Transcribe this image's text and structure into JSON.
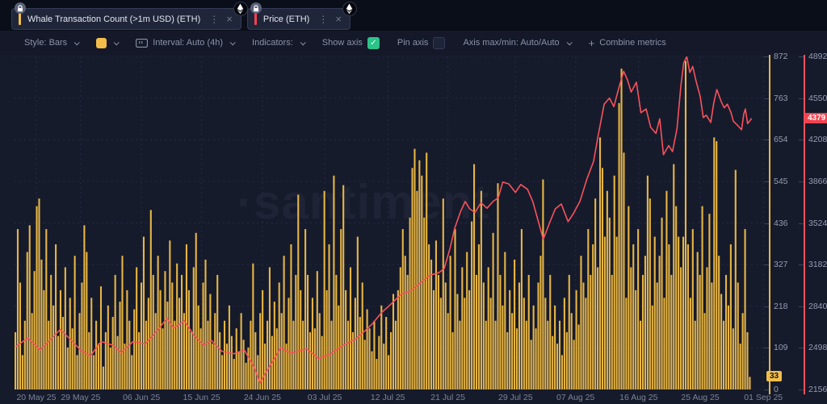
{
  "tabs": [
    {
      "label": "Whale Transaction Count (>1m USD) (ETH)",
      "color": "#f2bd4a",
      "menu_glyph": "⋮",
      "close_glyph": "×"
    },
    {
      "label": "Price (ETH)",
      "color": "#f4434f",
      "menu_glyph": "⋮",
      "close_glyph": "×"
    }
  ],
  "toolbar": {
    "style": "Style: Bars",
    "swatch_color": "#f2bd4a",
    "interval": "Interval: Auto (4h)",
    "indicators": "Indicators:",
    "show_axis": "Show axis",
    "check_glyph": "✓",
    "pin_axis": "Pin axis",
    "axis_maxmin": "Axis max/min: Auto/Auto",
    "combine_plus": "+",
    "combine_metrics": "Combine metrics"
  },
  "watermark": "·santiment",
  "chart_data": {
    "type": "bar+line",
    "title": "Whale Transaction Count (>1m USD) vs Price (ETH)",
    "grid_color": "#242b42",
    "data_span": 0.981,
    "x_labels": [
      {
        "t": "20 May 25",
        "f": 0.029
      },
      {
        "t": "29 May 25",
        "f": 0.088
      },
      {
        "t": "06 Jun 25",
        "f": 0.169
      },
      {
        "t": "15 Jun 25",
        "f": 0.249
      },
      {
        "t": "24 Jun 25",
        "f": 0.33
      },
      {
        "t": "03 Jul 25",
        "f": 0.413
      },
      {
        "t": "12 Jul 25",
        "f": 0.497
      },
      {
        "t": "21 Jul 25",
        "f": 0.577
      },
      {
        "t": "29 Jul 25",
        "f": 0.667
      },
      {
        "t": "07 Aug 25",
        "f": 0.747
      },
      {
        "t": "16 Aug 25",
        "f": 0.831
      },
      {
        "t": "25 Aug 25",
        "f": 0.913
      },
      {
        "t": "01 Sep 25",
        "f": 0.997
      }
    ],
    "bar_series": {
      "name": "Whale Transaction Count (>1m USD) (ETH)",
      "color": "#e7b544",
      "axis": {
        "min": 0,
        "max": 872,
        "ticks": [
          "872",
          "763",
          "654",
          "545",
          "436",
          "327",
          "218",
          "109",
          "0"
        ],
        "current": 33,
        "badge_color": "#f2bd4a"
      },
      "values": [
        150,
        420,
        280,
        90,
        180,
        360,
        430,
        200,
        310,
        480,
        500,
        340,
        260,
        420,
        180,
        300,
        220,
        380,
        140,
        260,
        190,
        320,
        110,
        240,
        160,
        350,
        90,
        200,
        280,
        430,
        360,
        150,
        240,
        90,
        180,
        120,
        270,
        60,
        150,
        220,
        110,
        190,
        300,
        140,
        230,
        350,
        120,
        260,
        180,
        90,
        210,
        320,
        150,
        280,
        400,
        180,
        240,
        470,
        300,
        200,
        350,
        260,
        160,
        310,
        230,
        390,
        280,
        180,
        330,
        240,
        300,
        200,
        380,
        260,
        150,
        320,
        410,
        220,
        160,
        280,
        340,
        180,
        250,
        120,
        200,
        300,
        150,
        90,
        180,
        120,
        220,
        140,
        80,
        160,
        100,
        200,
        130,
        70,
        110,
        180,
        330,
        150,
        90,
        200,
        260,
        120,
        180,
        320,
        140,
        230,
        160,
        280,
        200,
        350,
        120,
        240,
        380,
        180,
        300,
        510,
        260,
        180,
        420,
        300,
        150,
        240,
        160,
        310,
        200,
        140,
        520,
        260,
        380,
        180,
        560,
        300,
        220,
        420,
        535,
        260,
        180,
        320,
        150,
        240,
        400,
        190,
        280,
        130,
        210,
        160,
        100,
        180,
        80,
        140,
        220,
        120,
        190,
        90,
        150,
        250,
        180,
        260,
        320,
        420,
        350,
        300,
        450,
        580,
        630,
        520,
        600,
        560,
        450,
        620,
        380,
        340,
        260,
        390,
        300,
        240,
        500,
        280,
        200,
        350,
        150,
        420,
        250,
        180,
        320,
        240,
        360,
        260,
        440,
        590,
        300,
        380,
        520,
        280,
        180,
        320,
        240,
        410,
        180,
        540,
        300,
        220,
        360,
        150,
        260,
        200,
        340,
        160,
        280,
        420,
        240,
        180,
        300,
        130,
        220,
        160,
        280,
        350,
        550,
        240,
        180,
        300,
        140,
        220,
        120,
        180,
        90,
        240,
        150,
        300,
        200,
        130,
        260,
        170,
        350,
        280,
        240,
        420,
        300,
        380,
        500,
        320,
        660,
        580,
        400,
        520,
        450,
        300,
        560,
        400,
        750,
        840,
        620,
        240,
        480,
        320,
        380,
        260,
        420,
        180,
        300,
        350,
        560,
        500,
        220,
        400,
        280,
        350,
        450,
        240,
        520,
        380,
        300,
        590,
        480,
        400,
        320,
        400,
        860,
        380,
        240,
        420,
        180,
        360,
        300,
        480,
        200,
        320,
        460,
        280,
        660,
        650,
        350,
        250,
        180,
        300,
        220,
        380,
        160,
        575,
        280,
        120,
        200,
        420,
        150,
        33
      ]
    },
    "line_series": {
      "name": "Price (ETH)",
      "color": "#f9525a",
      "axis": {
        "min": 2156,
        "max": 4892,
        "ticks": [
          "4892",
          "4550",
          "4208",
          "3866",
          "3524",
          "3182",
          "2840",
          "2498",
          "2156"
        ],
        "current": 4379,
        "badge_color": "#f4434f"
      },
      "points": [
        [
          0.002,
          2510
        ],
        [
          0.018,
          2580
        ],
        [
          0.034,
          2480
        ],
        [
          0.047,
          2560
        ],
        [
          0.061,
          2650
        ],
        [
          0.077,
          2550
        ],
        [
          0.088,
          2480
        ],
        [
          0.101,
          2430
        ],
        [
          0.115,
          2550
        ],
        [
          0.131,
          2520
        ],
        [
          0.142,
          2460
        ],
        [
          0.158,
          2550
        ],
        [
          0.174,
          2530
        ],
        [
          0.19,
          2640
        ],
        [
          0.203,
          2740
        ],
        [
          0.212,
          2660
        ],
        [
          0.226,
          2720
        ],
        [
          0.239,
          2600
        ],
        [
          0.252,
          2520
        ],
        [
          0.262,
          2560
        ],
        [
          0.276,
          2470
        ],
        [
          0.292,
          2450
        ],
        [
          0.306,
          2480
        ],
        [
          0.319,
          2340
        ],
        [
          0.327,
          2210
        ],
        [
          0.335,
          2300
        ],
        [
          0.348,
          2430
        ],
        [
          0.354,
          2500
        ],
        [
          0.368,
          2455
        ],
        [
          0.389,
          2490
        ],
        [
          0.405,
          2410
        ],
        [
          0.421,
          2450
        ],
        [
          0.438,
          2520
        ],
        [
          0.454,
          2570
        ],
        [
          0.467,
          2640
        ],
        [
          0.477,
          2700
        ],
        [
          0.489,
          2790
        ],
        [
          0.5,
          2850
        ],
        [
          0.515,
          2940
        ],
        [
          0.527,
          2965
        ],
        [
          0.54,
          3030
        ],
        [
          0.553,
          3095
        ],
        [
          0.565,
          3115
        ],
        [
          0.572,
          3150
        ],
        [
          0.58,
          3320
        ],
        [
          0.586,
          3480
        ],
        [
          0.594,
          3620
        ],
        [
          0.6,
          3700
        ],
        [
          0.606,
          3640
        ],
        [
          0.613,
          3610
        ],
        [
          0.621,
          3690
        ],
        [
          0.629,
          3645
        ],
        [
          0.637,
          3700
        ],
        [
          0.644,
          3730
        ],
        [
          0.65,
          3860
        ],
        [
          0.658,
          3845
        ],
        [
          0.667,
          3775
        ],
        [
          0.674,
          3840
        ],
        [
          0.683,
          3800
        ],
        [
          0.69,
          3700
        ],
        [
          0.699,
          3500
        ],
        [
          0.704,
          3390
        ],
        [
          0.712,
          3520
        ],
        [
          0.72,
          3640
        ],
        [
          0.728,
          3680
        ],
        [
          0.737,
          3535
        ],
        [
          0.744,
          3600
        ],
        [
          0.753,
          3705
        ],
        [
          0.762,
          3885
        ],
        [
          0.771,
          4030
        ],
        [
          0.777,
          4240
        ],
        [
          0.785,
          4500
        ],
        [
          0.792,
          4550
        ],
        [
          0.798,
          4480
        ],
        [
          0.804,
          4620
        ],
        [
          0.811,
          4770
        ],
        [
          0.816,
          4700
        ],
        [
          0.821,
          4600
        ],
        [
          0.828,
          4680
        ],
        [
          0.834,
          4430
        ],
        [
          0.841,
          4460
        ],
        [
          0.847,
          4310
        ],
        [
          0.854,
          4260
        ],
        [
          0.859,
          4380
        ],
        [
          0.864,
          4085
        ],
        [
          0.871,
          4160
        ],
        [
          0.876,
          4110
        ],
        [
          0.882,
          4300
        ],
        [
          0.887,
          4640
        ],
        [
          0.891,
          4840
        ],
        [
          0.895,
          4890
        ],
        [
          0.899,
          4760
        ],
        [
          0.903,
          4810
        ],
        [
          0.907,
          4700
        ],
        [
          0.913,
          4560
        ],
        [
          0.917,
          4390
        ],
        [
          0.921,
          4410
        ],
        [
          0.927,
          4350
        ],
        [
          0.931,
          4510
        ],
        [
          0.935,
          4620
        ],
        [
          0.941,
          4520
        ],
        [
          0.945,
          4470
        ],
        [
          0.949,
          4500
        ],
        [
          0.954,
          4430
        ],
        [
          0.957,
          4360
        ],
        [
          0.962,
          4330
        ],
        [
          0.968,
          4290
        ],
        [
          0.971,
          4420
        ],
        [
          0.973,
          4460
        ],
        [
          0.976,
          4340
        ],
        [
          0.981,
          4379
        ]
      ]
    }
  }
}
